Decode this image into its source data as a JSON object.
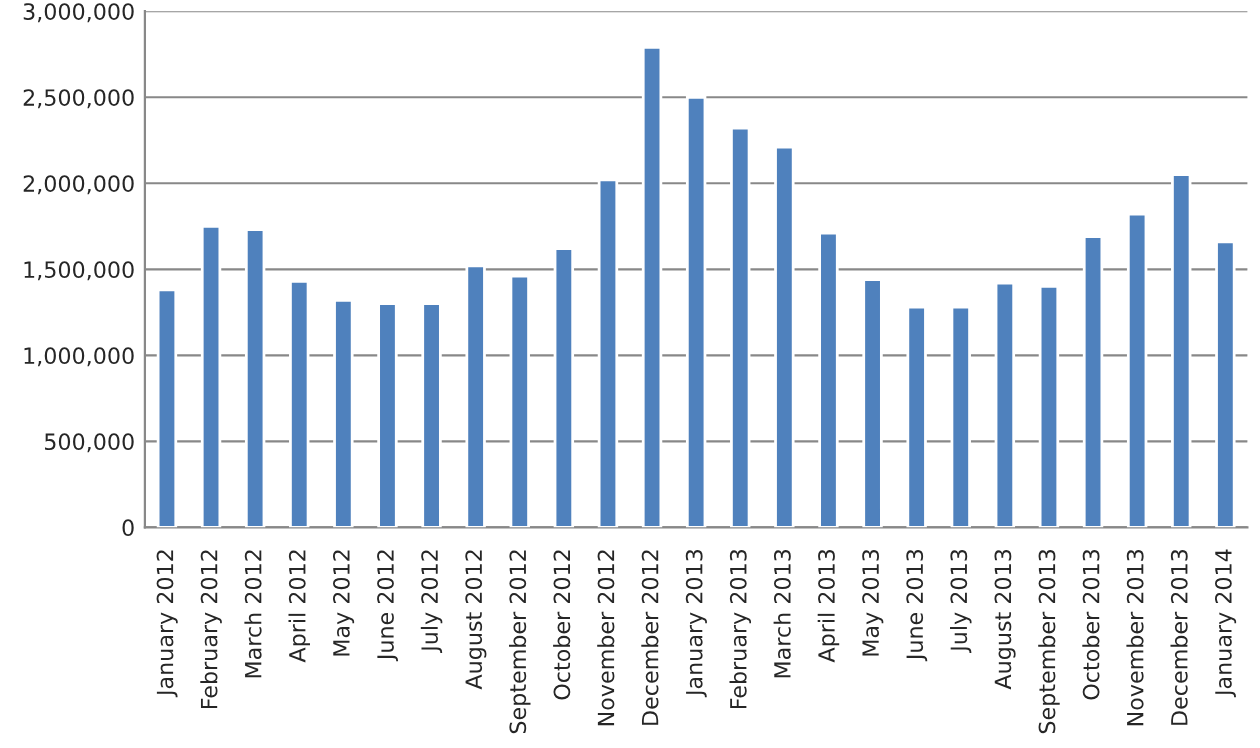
{
  "chart_data": {
    "type": "bar",
    "categories": [
      "January 2012",
      "February 2012",
      "March 2012",
      "April 2012",
      "May 2012",
      "June 2012",
      "July 2012",
      "August 2012",
      "September 2012",
      "October 2012",
      "November 2012",
      "December 2012",
      "January 2013",
      "February 2013",
      "March 2013",
      "April 2013",
      "May 2013",
      "June 2013",
      "July 2013",
      "August 2013",
      "September 2013",
      "October 2013",
      "November 2013",
      "December 2013",
      "January 2014"
    ],
    "values": [
      1380000,
      1750000,
      1730000,
      1430000,
      1320000,
      1300000,
      1300000,
      1520000,
      1460000,
      1620000,
      2020000,
      2790000,
      2500000,
      2320000,
      2210000,
      1710000,
      1440000,
      1280000,
      1280000,
      1420000,
      1400000,
      1690000,
      1820000,
      2050000,
      1660000
    ],
    "color": "#4f81bd",
    "ylim": [
      0,
      3000000
    ],
    "yticks": [
      {
        "value": 0,
        "label": "0"
      },
      {
        "value": 500000,
        "label": "500,000"
      },
      {
        "value": 1000000,
        "label": "1,000,000"
      },
      {
        "value": 1500000,
        "label": "1,500,000"
      },
      {
        "value": 2000000,
        "label": "2,000,000"
      },
      {
        "value": 2500000,
        "label": "2,500,000"
      },
      {
        "value": 3000000,
        "label": "3,000,000"
      }
    ],
    "grid": "y",
    "legend": false
  }
}
